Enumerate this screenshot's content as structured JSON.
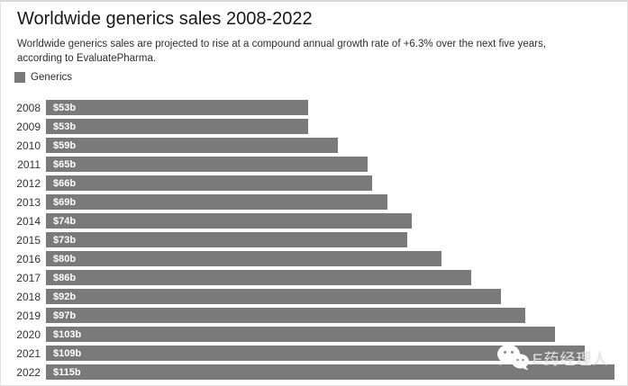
{
  "title": "Worldwide generics sales 2008-2022",
  "subtitle": "Worldwide generics sales are projected to rise at a compound annual growth rate of +6.3% over the next five years, according to EvaluatePharma.",
  "legend": {
    "label": "Generics"
  },
  "colors": {
    "bar": "#7a7a7a",
    "value_label": "#ffffff",
    "year_label": "#333333"
  },
  "watermark": {
    "icon": "wechat-icon",
    "text": "E药经理人"
  },
  "chart_data": {
    "type": "bar",
    "orientation": "horizontal",
    "title": "Worldwide generics sales 2008-2022",
    "legend_position": "top-left",
    "grid": false,
    "categories": [
      "2008",
      "2009",
      "2010",
      "2011",
      "2012",
      "2013",
      "2014",
      "2015",
      "2016",
      "2017",
      "2018",
      "2019",
      "2020",
      "2021",
      "2022"
    ],
    "series": [
      {
        "name": "Generics",
        "values": [
          53,
          53,
          59,
          65,
          66,
          69,
          74,
          73,
          80,
          86,
          92,
          97,
          103,
          109,
          115
        ],
        "value_labels": [
          "$53b",
          "$53b",
          "$59b",
          "$65b",
          "$66b",
          "$69b",
          "$74b",
          "$73b",
          "$80b",
          "$86b",
          "$92b",
          "$97b",
          "$103b",
          "$109b",
          "$115b"
        ]
      }
    ],
    "xlim": [
      0,
      115
    ]
  }
}
